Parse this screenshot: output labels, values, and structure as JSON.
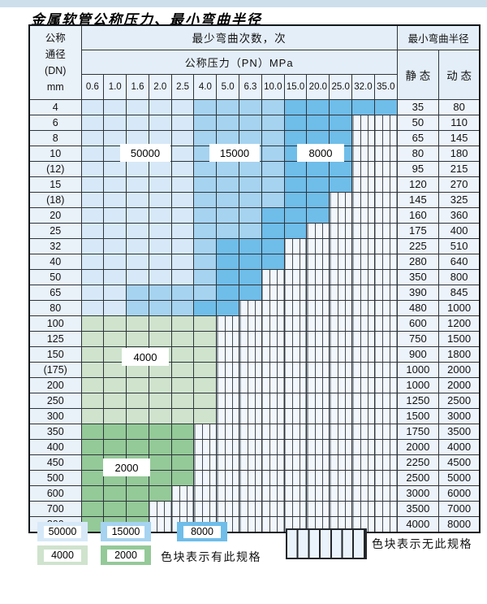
{
  "page": {
    "title": "金属软管公称压力、最小弯曲半径"
  },
  "table": {
    "header": {
      "dn_lines": [
        "公称",
        "通径",
        "(DN)",
        "mm"
      ],
      "cycles_title": "最少弯曲次数，次",
      "pressure_title": "公称压力（PN）MPa",
      "pressures": [
        "0.6",
        "1.0",
        "1.6",
        "2.0",
        "2.5",
        "4.0",
        "5.0",
        "6.3",
        "10.0",
        "15.0",
        "20.0",
        "25.0",
        "32.0",
        "35.0"
      ],
      "radius_title": "最小弯曲半径",
      "static_label": "静 态",
      "dynamic_label": "动 态"
    },
    "zone_values": {
      "L": "50000",
      "M": "15000",
      "D": "8000",
      "g": "4000",
      "G": "2000"
    },
    "zone_colors": {
      "L": "#d7e9f8",
      "M": "#a6d3f0",
      "D": "#6fbde9",
      "g": "#cfe3cd",
      "G": "#94c998"
    },
    "hatch_meaning": "无此规格",
    "rows": [
      {
        "dn": "4",
        "static": "35",
        "dynamic": "80",
        "cells": "LLLLLMMMMDDDDD"
      },
      {
        "dn": "6",
        "static": "50",
        "dynamic": "110",
        "cells": "LLLLLMMMMDDDHH"
      },
      {
        "dn": "8",
        "static": "65",
        "dynamic": "145",
        "cells": "LLLLLMMMMDDDHH"
      },
      {
        "dn": "10",
        "static": "80",
        "dynamic": "180",
        "cells": "LLLLLMMMMDDDHH"
      },
      {
        "dn": "(12)",
        "static": "95",
        "dynamic": "215",
        "cells": "LLLLLMMMMDDDHH"
      },
      {
        "dn": "15",
        "static": "120",
        "dynamic": "270",
        "cells": "LLLLLMMMMDDDHH"
      },
      {
        "dn": "(18)",
        "static": "145",
        "dynamic": "325",
        "cells": "LLLLLMMMMDDHHH"
      },
      {
        "dn": "20",
        "static": "160",
        "dynamic": "360",
        "cells": "LLLLLMMMDDDHHH"
      },
      {
        "dn": "25",
        "static": "175",
        "dynamic": "400",
        "cells": "LLLLLMMMDDHHHH"
      },
      {
        "dn": "32",
        "static": "225",
        "dynamic": "510",
        "cells": "LLLLLMDDDHHHHH"
      },
      {
        "dn": "40",
        "static": "280",
        "dynamic": "640",
        "cells": "LLLLLMDDDHHHHH"
      },
      {
        "dn": "50",
        "static": "350",
        "dynamic": "800",
        "cells": "LLLLLMDDHHHHHH"
      },
      {
        "dn": "65",
        "static": "390",
        "dynamic": "845",
        "cells": "LLMMMMDDHHHHHH"
      },
      {
        "dn": "80",
        "static": "480",
        "dynamic": "1000",
        "cells": "LLMMMDDHHHHHHH"
      },
      {
        "dn": "100",
        "static": "600",
        "dynamic": "1200",
        "cells": "ggggggHHHHHHHH"
      },
      {
        "dn": "125",
        "static": "750",
        "dynamic": "1500",
        "cells": "ggggggHHHHHHHH"
      },
      {
        "dn": "150",
        "static": "900",
        "dynamic": "1800",
        "cells": "ggggggHHHHHHHH"
      },
      {
        "dn": "(175)",
        "static": "1000",
        "dynamic": "2000",
        "cells": "ggggggHHHHHHHH"
      },
      {
        "dn": "200",
        "static": "1000",
        "dynamic": "2000",
        "cells": "ggggggHHHHHHHH"
      },
      {
        "dn": "250",
        "static": "1250",
        "dynamic": "2500",
        "cells": "ggggggHHHHHHHH"
      },
      {
        "dn": "300",
        "static": "1500",
        "dynamic": "3000",
        "cells": "ggggggHHHHHHHH"
      },
      {
        "dn": "350",
        "static": "1750",
        "dynamic": "3500",
        "cells": "GGGGGHHHHHHHHH"
      },
      {
        "dn": "400",
        "static": "2000",
        "dynamic": "4000",
        "cells": "GGGGGHHHHHHHHH"
      },
      {
        "dn": "450",
        "static": "2250",
        "dynamic": "4500",
        "cells": "GGGGGHHHHHHHHH"
      },
      {
        "dn": "500",
        "static": "2500",
        "dynamic": "5000",
        "cells": "GGGGGHHHHHHHHH"
      },
      {
        "dn": "600",
        "static": "3000",
        "dynamic": "6000",
        "cells": "GGGGHHHHHHHHHH"
      },
      {
        "dn": "700",
        "static": "3500",
        "dynamic": "7000",
        "cells": "GGGHHHHHHHHHHH"
      },
      {
        "dn": "800",
        "static": "4000",
        "dynamic": "8000",
        "cells": "GGGHHHHHHHHHHH"
      }
    ]
  },
  "legend": {
    "swatches": [
      {
        "label": "50000",
        "zone": "L"
      },
      {
        "label": "15000",
        "zone": "M"
      },
      {
        "label": "8000",
        "zone": "D"
      },
      {
        "label": "4000",
        "zone": "g"
      },
      {
        "label": "2000",
        "zone": "G"
      }
    ],
    "exists_note": "色块表示有此规格",
    "absent_note": "色块表示无此规格"
  }
}
